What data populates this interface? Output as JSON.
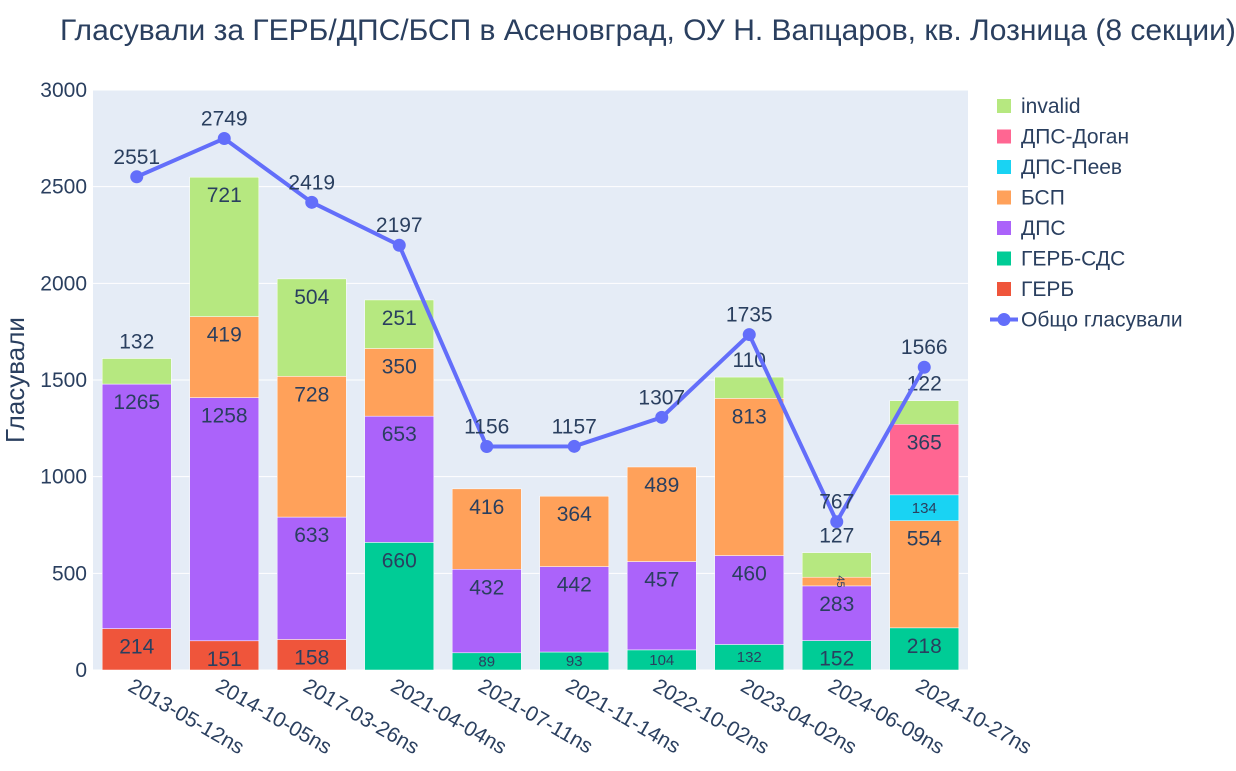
{
  "title": "Гласували за ГЕРБ/ДПС/БСП в Асеновград, ОУ Н. Вапцаров, кв. Лозница (8 секции)",
  "chart_data": {
    "type": "bar",
    "barmode": "stack",
    "title": "Гласували за ГЕРБ/ДПС/БСП в Асеновград, ОУ Н. Вапцаров, кв. Лозница (8 секции)",
    "ylabel": "Гласували",
    "xlabel": "",
    "ylim": [
      0,
      3000
    ],
    "yticks": [
      0,
      500,
      1000,
      1500,
      2000,
      2500,
      3000
    ],
    "grid": true,
    "legend_position": "right",
    "categories": [
      "2013-05-12ns",
      "2014-10-05ns",
      "2017-03-26ns",
      "2021-04-04ns",
      "2021-07-11ns",
      "2021-11-14ns",
      "2022-10-02ns",
      "2023-04-02ns",
      "2024-06-09ns",
      "2024-10-27ns"
    ],
    "series": [
      {
        "name": "ГЕРБ",
        "color": "#EF553B",
        "values": [
          214,
          151,
          158,
          0,
          0,
          0,
          0,
          0,
          0,
          0
        ]
      },
      {
        "name": "ГЕРБ-СДС",
        "color": "#00CC96",
        "values": [
          0,
          0,
          0,
          660,
          89,
          93,
          104,
          132,
          152,
          218
        ]
      },
      {
        "name": "ДПС",
        "color": "#AB63FA",
        "values": [
          1265,
          1258,
          633,
          653,
          432,
          442,
          457,
          460,
          283,
          0
        ]
      },
      {
        "name": "БСП",
        "color": "#FFA15A",
        "values": [
          0,
          419,
          728,
          350,
          416,
          364,
          489,
          813,
          45,
          554
        ]
      },
      {
        "name": "ДПС-Пеев",
        "color": "#19D3F3",
        "values": [
          0,
          0,
          0,
          0,
          0,
          0,
          0,
          0,
          0,
          134
        ]
      },
      {
        "name": "ДПС-Доган",
        "color": "#FF6692",
        "values": [
          0,
          0,
          0,
          0,
          0,
          0,
          0,
          0,
          0,
          365
        ]
      },
      {
        "name": "invalid",
        "color": "#B6E880",
        "values": [
          132,
          721,
          504,
          251,
          0,
          0,
          0,
          110,
          127,
          122
        ]
      }
    ],
    "line": {
      "name": "Общо гласували",
      "color": "#636EFA",
      "values": [
        2551,
        2749,
        2419,
        2197,
        1156,
        1157,
        1307,
        1735,
        767,
        1566
      ]
    },
    "legend_order": [
      "invalid",
      "ДПС-Доган",
      "ДПС-Пеев",
      "БСП",
      "ДПС",
      "ГЕРБ-СДС",
      "ГЕРБ",
      "Общо гласували"
    ]
  }
}
